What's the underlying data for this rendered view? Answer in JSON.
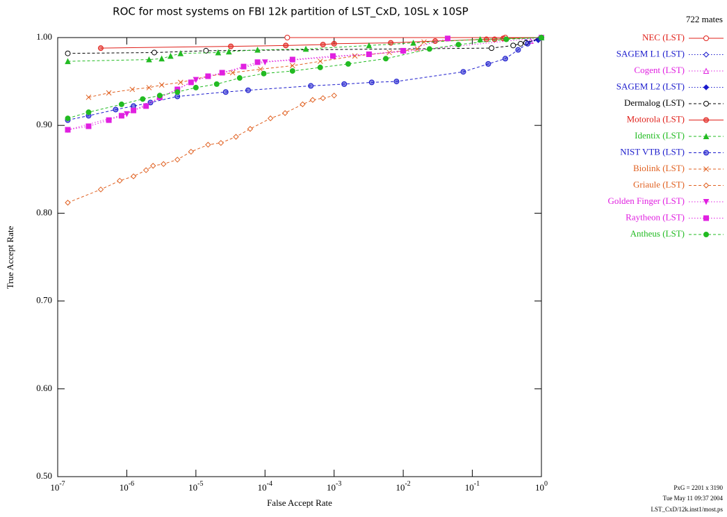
{
  "chart_data": {
    "type": "line",
    "title": "ROC for most systems on FBI 12k partition of LST_CxD, 10SL x 10SP",
    "x_label": "False Accept Rate",
    "y_label": "True Accept Rate",
    "annotations": [
      "722 mates",
      "PxG = 2201 x 3190",
      "Tue May 11 09:37 2004",
      "LST_CxD/12k.inst1/most.ps"
    ],
    "xscale": "log",
    "xlim": [
      1e-07,
      1
    ],
    "ylim": [
      0.5,
      1.0
    ],
    "xticks": [
      {
        "value": 1e-07,
        "label": "10^-7"
      },
      {
        "value": 1e-06,
        "label": "10^-6"
      },
      {
        "value": 1e-05,
        "label": "10^-5"
      },
      {
        "value": 0.0001,
        "label": "10^-4"
      },
      {
        "value": 0.001,
        "label": "10^-3"
      },
      {
        "value": 0.01,
        "label": "10^-2"
      },
      {
        "value": 0.1,
        "label": "10^-1"
      },
      {
        "value": 1,
        "label": "10^0"
      }
    ],
    "yticks": [
      {
        "value": 0.5,
        "label": "0.50"
      },
      {
        "value": 0.6,
        "label": "0.60"
      },
      {
        "value": 0.7,
        "label": "0.70"
      },
      {
        "value": 0.8,
        "label": "0.80"
      },
      {
        "value": 0.9,
        "label": "0.90"
      },
      {
        "value": 1.0,
        "label": "1.00"
      }
    ],
    "legend": "right",
    "series": [
      {
        "name": "NEC (LST)",
        "color": "#e0201a",
        "marker": "circle-open",
        "linestyle": "solid",
        "x": [
          0.00021,
          0.3,
          1
        ],
        "values": [
          1.0,
          1.0,
          1.0
        ]
      },
      {
        "name": "SAGEM L1 (LST)",
        "color": "#1a1acc",
        "marker": "diamond-open",
        "linestyle": "dotted",
        "x": [
          0.6,
          0.9,
          1
        ],
        "values": [
          0.994,
          0.997,
          1.0
        ]
      },
      {
        "name": "Cogent (LST)",
        "color": "#e020e0",
        "marker": "triangle-open",
        "linestyle": "dotted",
        "x": [
          0.7,
          1
        ],
        "values": [
          0.996,
          1.0
        ]
      },
      {
        "name": "SAGEM L2 (LST)",
        "color": "#1a1acc",
        "marker": "diamond-filled",
        "linestyle": "dotted",
        "x": [
          0.6,
          0.9,
          1
        ],
        "values": [
          0.995,
          0.998,
          1.0
        ]
      },
      {
        "name": "Dermalog (LST)",
        "color": "#000000",
        "marker": "circle-open",
        "linestyle": "dashed",
        "x": [
          1.4e-07,
          2.5e-06,
          1.4e-05,
          0.19,
          0.39,
          0.5,
          0.6,
          1
        ],
        "values": [
          0.982,
          0.983,
          0.985,
          0.988,
          0.991,
          0.993,
          0.994,
          1.0
        ]
      },
      {
        "name": "Motorola (LST)",
        "color": "#e0201a",
        "marker": "circle-half",
        "linestyle": "solid",
        "x": [
          4.2e-07,
          3.2e-05,
          0.0002,
          0.00069,
          0.001,
          0.0066,
          0.029,
          0.16,
          0.21,
          0.28,
          1
        ],
        "values": [
          0.988,
          0.99,
          0.991,
          0.992,
          0.993,
          0.994,
          0.996,
          0.998,
          0.998,
          0.999,
          1.0
        ]
      },
      {
        "name": "Identix (LST)",
        "color": "#22bb22",
        "marker": "triangle-filled",
        "linestyle": "dashed",
        "x": [
          1.4e-07,
          2.1e-06,
          3.2e-06,
          4.3e-06,
          6e-06,
          2.1e-05,
          3e-05,
          7.8e-05,
          0.00039,
          0.0032,
          0.014,
          0.13,
          1
        ],
        "values": [
          0.973,
          0.975,
          0.976,
          0.979,
          0.982,
          0.983,
          0.984,
          0.986,
          0.987,
          0.991,
          0.994,
          0.998,
          1.0
        ]
      },
      {
        "name": "NIST VTB (LST)",
        "color": "#1a1acc",
        "marker": "circle-half",
        "linestyle": "dashed",
        "x": [
          1.4e-07,
          2.8e-07,
          6.9e-07,
          1.25e-06,
          2.2e-06,
          5.4e-06,
          2.7e-05,
          5.7e-05,
          0.00046,
          0.0014,
          0.0035,
          0.008,
          0.074,
          0.17,
          0.3,
          0.46,
          0.63,
          1
        ],
        "values": [
          0.906,
          0.911,
          0.918,
          0.922,
          0.926,
          0.933,
          0.938,
          0.94,
          0.945,
          0.947,
          0.949,
          0.95,
          0.961,
          0.97,
          0.976,
          0.986,
          0.993,
          1.0
        ]
      },
      {
        "name": "Biolink (LST)",
        "color": "#e06020",
        "marker": "cross",
        "linestyle": "dashed",
        "x": [
          2.8e-07,
          5.5e-07,
          1.2e-06,
          2.1e-06,
          3.2e-06,
          6e-06,
          1.5e-05,
          3.4e-05,
          8.6e-05,
          0.00025,
          0.00063,
          0.002,
          0.0063,
          0.016,
          0.02
        ],
        "values": [
          0.932,
          0.937,
          0.941,
          0.943,
          0.946,
          0.949,
          0.956,
          0.96,
          0.964,
          0.968,
          0.973,
          0.979,
          0.983,
          0.987,
          0.995
        ]
      },
      {
        "name": "Griaule (LST)",
        "color": "#e06020",
        "marker": "diamond-open",
        "linestyle": "dashed",
        "x": [
          1.4e-07,
          4.2e-07,
          7.9e-07,
          1.25e-06,
          1.9e-06,
          2.4e-06,
          3.4e-06,
          5.4e-06,
          8.5e-06,
          1.5e-05,
          2.3e-05,
          3.8e-05,
          6.1e-05,
          0.00012,
          0.000195,
          0.00035,
          0.00049,
          0.00069,
          0.001
        ],
        "values": [
          0.812,
          0.827,
          0.837,
          0.842,
          0.849,
          0.854,
          0.856,
          0.861,
          0.87,
          0.878,
          0.88,
          0.887,
          0.896,
          0.908,
          0.914,
          0.924,
          0.929,
          0.931,
          0.934
        ]
      },
      {
        "name": "Golden Finger (LST)",
        "color": "#e020e0",
        "marker": "triangle-down-filled",
        "linestyle": "dotted",
        "x": [
          1.4e-07,
          1e-06,
          1e-05,
          0.0001,
          0.01,
          1
        ],
        "values": [
          0.895,
          0.913,
          0.952,
          0.972,
          0.984,
          1.0
        ]
      },
      {
        "name": "Raytheon (LST)",
        "color": "#e020e0",
        "marker": "square-filled",
        "linestyle": "dotted",
        "x": [
          1.4e-07,
          2.8e-07,
          5.5e-07,
          8.4e-07,
          1.25e-06,
          1.9e-06,
          3e-06,
          5.4e-06,
          8.5e-06,
          1.5e-05,
          2.4e-05,
          4.9e-05,
          7.8e-05,
          0.00025,
          0.00096,
          0.0032,
          0.01,
          0.044
        ],
        "values": [
          0.895,
          0.899,
          0.906,
          0.911,
          0.917,
          0.922,
          0.932,
          0.941,
          0.949,
          0.956,
          0.96,
          0.967,
          0.972,
          0.975,
          0.979,
          0.981,
          0.985,
          0.999
        ]
      },
      {
        "name": "Antheus (LST)",
        "color": "#22bb22",
        "marker": "circle-filled",
        "linestyle": "dashed",
        "x": [
          1.4e-07,
          2.8e-07,
          8.4e-07,
          1.7e-06,
          3e-06,
          5.4e-06,
          1e-05,
          2e-05,
          4.3e-05,
          9.6e-05,
          0.00025,
          0.00063,
          0.0016,
          0.0056,
          0.024,
          0.063,
          0.31,
          1
        ],
        "values": [
          0.908,
          0.915,
          0.924,
          0.93,
          0.934,
          0.938,
          0.943,
          0.947,
          0.954,
          0.959,
          0.962,
          0.966,
          0.97,
          0.976,
          0.987,
          0.992,
          0.998,
          1.0
        ]
      }
    ]
  }
}
